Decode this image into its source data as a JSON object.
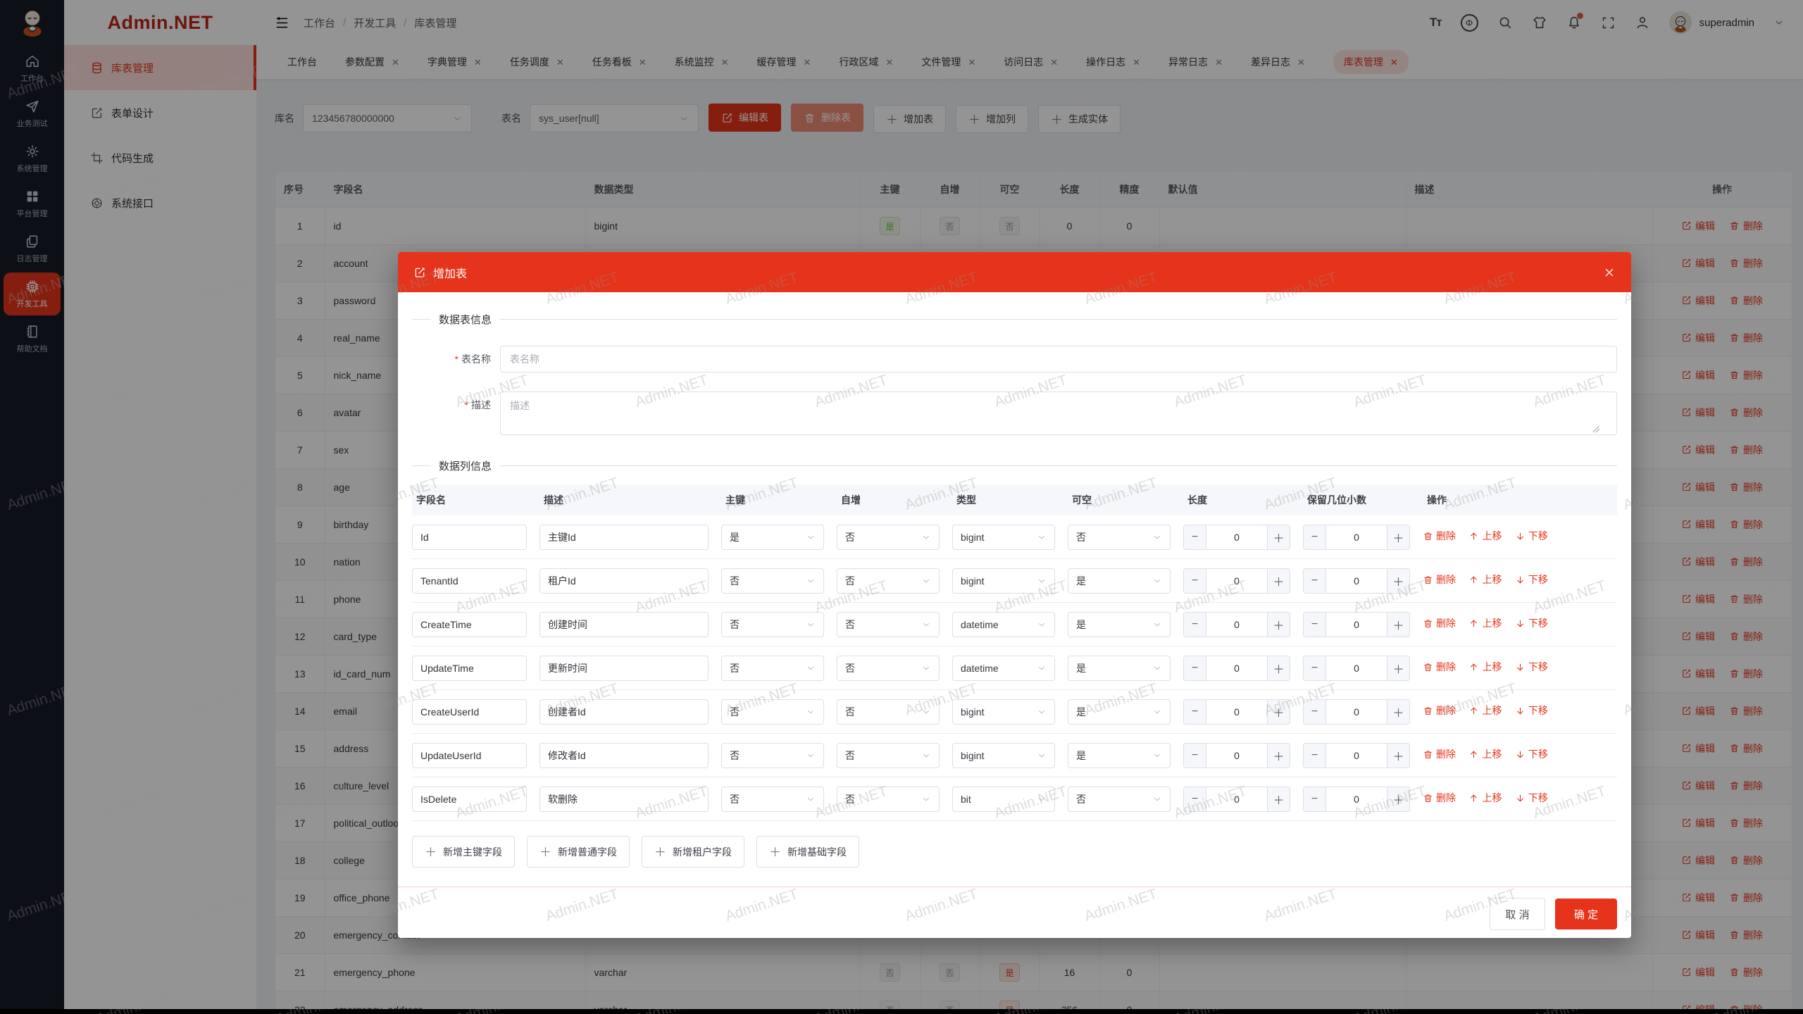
{
  "theme": {
    "primary": "#e5341b",
    "logo_red": "#bf2418",
    "rail_bg": "#171b26",
    "tag_green": "#67c23a",
    "tag_gray": "#909399"
  },
  "watermark": "Admin.NET",
  "rail": {
    "logo_icon": "monk-logo-icon",
    "items": [
      {
        "label": "工作台",
        "icon": "home-icon",
        "active": false
      },
      {
        "label": "业务测试",
        "icon": "paper-plane-icon",
        "active": false
      },
      {
        "label": "系统管理",
        "icon": "gear-icon",
        "active": false
      },
      {
        "label": "平台管理",
        "icon": "grid-icon",
        "active": false
      },
      {
        "label": "日志管理",
        "icon": "copy-icon",
        "active": false
      },
      {
        "label": "开发工具",
        "icon": "chip-icon",
        "active": true
      },
      {
        "label": "帮助文档",
        "icon": "book-icon",
        "active": false
      }
    ]
  },
  "sidebar": {
    "logo": "Admin.NET",
    "items": [
      {
        "label": "库表管理",
        "icon": "database-icon",
        "active": true
      },
      {
        "label": "表单设计",
        "icon": "edit-square-icon",
        "active": false
      },
      {
        "label": "代码生成",
        "icon": "crop-icon",
        "active": false
      },
      {
        "label": "系统接口",
        "icon": "target-icon",
        "active": false
      }
    ]
  },
  "header": {
    "breadcrumb": [
      "工作台",
      "开发工具",
      "库表管理"
    ],
    "user": "superadmin",
    "icons": [
      "font-size-icon",
      "language-icon",
      "search-icon",
      "theme-icon",
      "notification-icon",
      "fullscreen-icon",
      "profile-icon"
    ],
    "font_size_glyph": "Tт",
    "language_glyph": "Φ",
    "notification_badge": true
  },
  "tabs": [
    {
      "label": "工作台",
      "closable": false,
      "active": false
    },
    {
      "label": "参数配置",
      "closable": true,
      "active": false
    },
    {
      "label": "字典管理",
      "closable": true,
      "active": false
    },
    {
      "label": "任务调度",
      "closable": true,
      "active": false
    },
    {
      "label": "任务看板",
      "closable": true,
      "active": false
    },
    {
      "label": "系统监控",
      "closable": true,
      "active": false
    },
    {
      "label": "缓存管理",
      "closable": true,
      "active": false
    },
    {
      "label": "行政区域",
      "closable": true,
      "active": false
    },
    {
      "label": "文件管理",
      "closable": true,
      "active": false
    },
    {
      "label": "访问日志",
      "closable": true,
      "active": false
    },
    {
      "label": "操作日志",
      "closable": true,
      "active": false
    },
    {
      "label": "异常日志",
      "closable": true,
      "active": false
    },
    {
      "label": "差异日志",
      "closable": true,
      "active": false
    },
    {
      "label": "库表管理",
      "closable": true,
      "active": true
    }
  ],
  "toolbar": {
    "db_label": "库名",
    "db_value": "123456780000000",
    "table_label": "表名",
    "table_value": "sys_user[null]",
    "buttons": [
      {
        "label": "编辑表",
        "type": "danger",
        "icon": "edit-square-icon"
      },
      {
        "label": "删除表",
        "type": "danger-soft",
        "icon": "trash-icon"
      },
      {
        "label": "增加表",
        "type": "plain",
        "icon": "plus-icon"
      },
      {
        "label": "增加列",
        "type": "plain",
        "icon": "plus-icon"
      },
      {
        "label": "生成实体",
        "type": "plain",
        "icon": "plus-icon"
      }
    ]
  },
  "table": {
    "headers": [
      "序号",
      "字段名",
      "数据类型",
      "主键",
      "自增",
      "可空",
      "长度",
      "精度",
      "默认值",
      "描述",
      "操作"
    ],
    "edit_label": "编辑",
    "delete_label": "删除",
    "rows": [
      {
        "num": "1",
        "name": "id",
        "type": "bigint",
        "pk": "是",
        "pk_t": "success",
        "inc": "否",
        "inc_t": "info",
        "nul": "否",
        "nul_t": "info",
        "len": "0",
        "prec": "0",
        "def": "",
        "desc": ""
      },
      {
        "num": "2",
        "name": "account"
      },
      {
        "num": "3",
        "name": "password"
      },
      {
        "num": "4",
        "name": "real_name"
      },
      {
        "num": "5",
        "name": "nick_name"
      },
      {
        "num": "6",
        "name": "avatar"
      },
      {
        "num": "7",
        "name": "sex"
      },
      {
        "num": "8",
        "name": "age"
      },
      {
        "num": "9",
        "name": "birthday"
      },
      {
        "num": "10",
        "name": "nation"
      },
      {
        "num": "11",
        "name": "phone"
      },
      {
        "num": "12",
        "name": "card_type"
      },
      {
        "num": "13",
        "name": "id_card_num"
      },
      {
        "num": "14",
        "name": "email"
      },
      {
        "num": "15",
        "name": "address"
      },
      {
        "num": "16",
        "name": "culture_level"
      },
      {
        "num": "17",
        "name": "political_outlook"
      },
      {
        "num": "18",
        "name": "college"
      },
      {
        "num": "19",
        "name": "office_phone"
      },
      {
        "num": "20",
        "name": "emergency_contact"
      },
      {
        "num": "21",
        "name": "emergency_phone",
        "type": "varchar",
        "pk": "否",
        "pk_t": "info",
        "inc": "否",
        "inc_t": "info",
        "nul": "是",
        "nul_t": "danger",
        "len": "16",
        "prec": "0",
        "def": "",
        "desc": ""
      },
      {
        "num": "22",
        "name": "emergency_address",
        "type": "varchar",
        "pk": "否",
        "pk_t": "info",
        "inc": "否",
        "inc_t": "info",
        "nul": "是",
        "nul_t": "danger",
        "len": "256",
        "prec": "0",
        "def": "",
        "desc": ""
      }
    ]
  },
  "modal": {
    "title": "增加表",
    "section_table": "数据表信息",
    "section_columns": "数据列信息",
    "fields": {
      "name_label": "表名称",
      "name_placeholder": "表名称",
      "desc_label": "描述",
      "desc_placeholder": "描述"
    },
    "col_headers": [
      "字段名",
      "描述",
      "主键",
      "自增",
      "类型",
      "可空",
      "长度",
      "保留几位小数",
      "操作"
    ],
    "rows": [
      {
        "name": "Id",
        "desc": "主键Id",
        "pk": "是",
        "inc": "否",
        "type": "bigint",
        "nul": "否",
        "len": "0",
        "dec": "0"
      },
      {
        "name": "TenantId",
        "desc": "租户Id",
        "pk": "否",
        "inc": "否",
        "type": "bigint",
        "nul": "是",
        "len": "0",
        "dec": "0"
      },
      {
        "name": "CreateTime",
        "desc": "创建时间",
        "pk": "否",
        "inc": "否",
        "type": "datetime",
        "nul": "是",
        "len": "0",
        "dec": "0"
      },
      {
        "name": "UpdateTime",
        "desc": "更新时间",
        "pk": "否",
        "inc": "否",
        "type": "datetime",
        "nul": "是",
        "len": "0",
        "dec": "0"
      },
      {
        "name": "CreateUserId",
        "desc": "创建者Id",
        "pk": "否",
        "inc": "否",
        "type": "bigint",
        "nul": "是",
        "len": "0",
        "dec": "0"
      },
      {
        "name": "UpdateUserId",
        "desc": "修改者Id",
        "pk": "否",
        "inc": "否",
        "type": "bigint",
        "nul": "是",
        "len": "0",
        "dec": "0"
      },
      {
        "name": "IsDelete",
        "desc": "软删除",
        "pk": "否",
        "inc": "否",
        "type": "bit",
        "nul": "否",
        "len": "0",
        "dec": "0"
      }
    ],
    "row_actions": {
      "delete": "删除",
      "up": "上移",
      "down": "下移"
    },
    "add_buttons": [
      "新增主键字段",
      "新增普通字段",
      "新增租户字段",
      "新增基础字段"
    ],
    "footer": {
      "cancel": "取 消",
      "ok": "确 定"
    }
  }
}
